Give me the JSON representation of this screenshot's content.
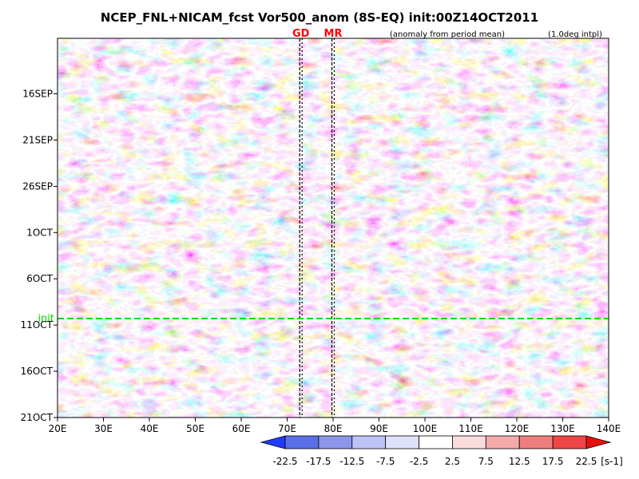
{
  "chart_data": {
    "type": "heatmap",
    "title": "NCEP_FNL+NICAM_fcst Vor500_anom (8S-EQ) init:00Z14OCT2011",
    "subtitle_left": "(anomaly from period mean)",
    "subtitle_right": "(1.0deg intpl)",
    "xlabel": "",
    "ylabel": "",
    "xlim": [
      20,
      140
    ],
    "x_ticks": [
      20,
      30,
      40,
      50,
      60,
      70,
      80,
      90,
      100,
      110,
      120,
      130,
      140
    ],
    "x_tick_labels": [
      "20E",
      "30E",
      "40E",
      "50E",
      "60E",
      "70E",
      "80E",
      "90E",
      "100E",
      "110E",
      "120E",
      "130E",
      "140E"
    ],
    "y_tick_labels": [
      "16SEP",
      "21SEP",
      "26SEP",
      "1OCT",
      "6OCT",
      "11OCT",
      "16OCT",
      "21OCT"
    ],
    "y_tick_days": [
      3,
      8,
      13,
      18,
      23,
      28,
      33,
      38
    ],
    "y_range_days": [
      -3,
      38
    ],
    "init_label": "init",
    "init_day": 27.3,
    "init_color": "#00dd00",
    "markers": [
      {
        "label": "GD",
        "lon": 73,
        "color": "#ff0000"
      },
      {
        "label": "MR",
        "lon": 80,
        "color": "#ff0000"
      }
    ],
    "colorbar": {
      "levels": [
        "-22.5",
        "-17.5",
        "-12.5",
        "-7.5",
        "-2.5",
        "2.5",
        "7.5",
        "12.5",
        "17.5",
        "22.5"
      ],
      "units": "[s-1]",
      "colors": [
        "#1e3cff",
        "#5a6ee6",
        "#8c96eb",
        "#bec3f5",
        "#dde1fa",
        "#ffffff",
        "#fadcdc",
        "#f5aaaa",
        "#f07d7d",
        "#ee4646",
        "#e60f0f"
      ]
    }
  }
}
